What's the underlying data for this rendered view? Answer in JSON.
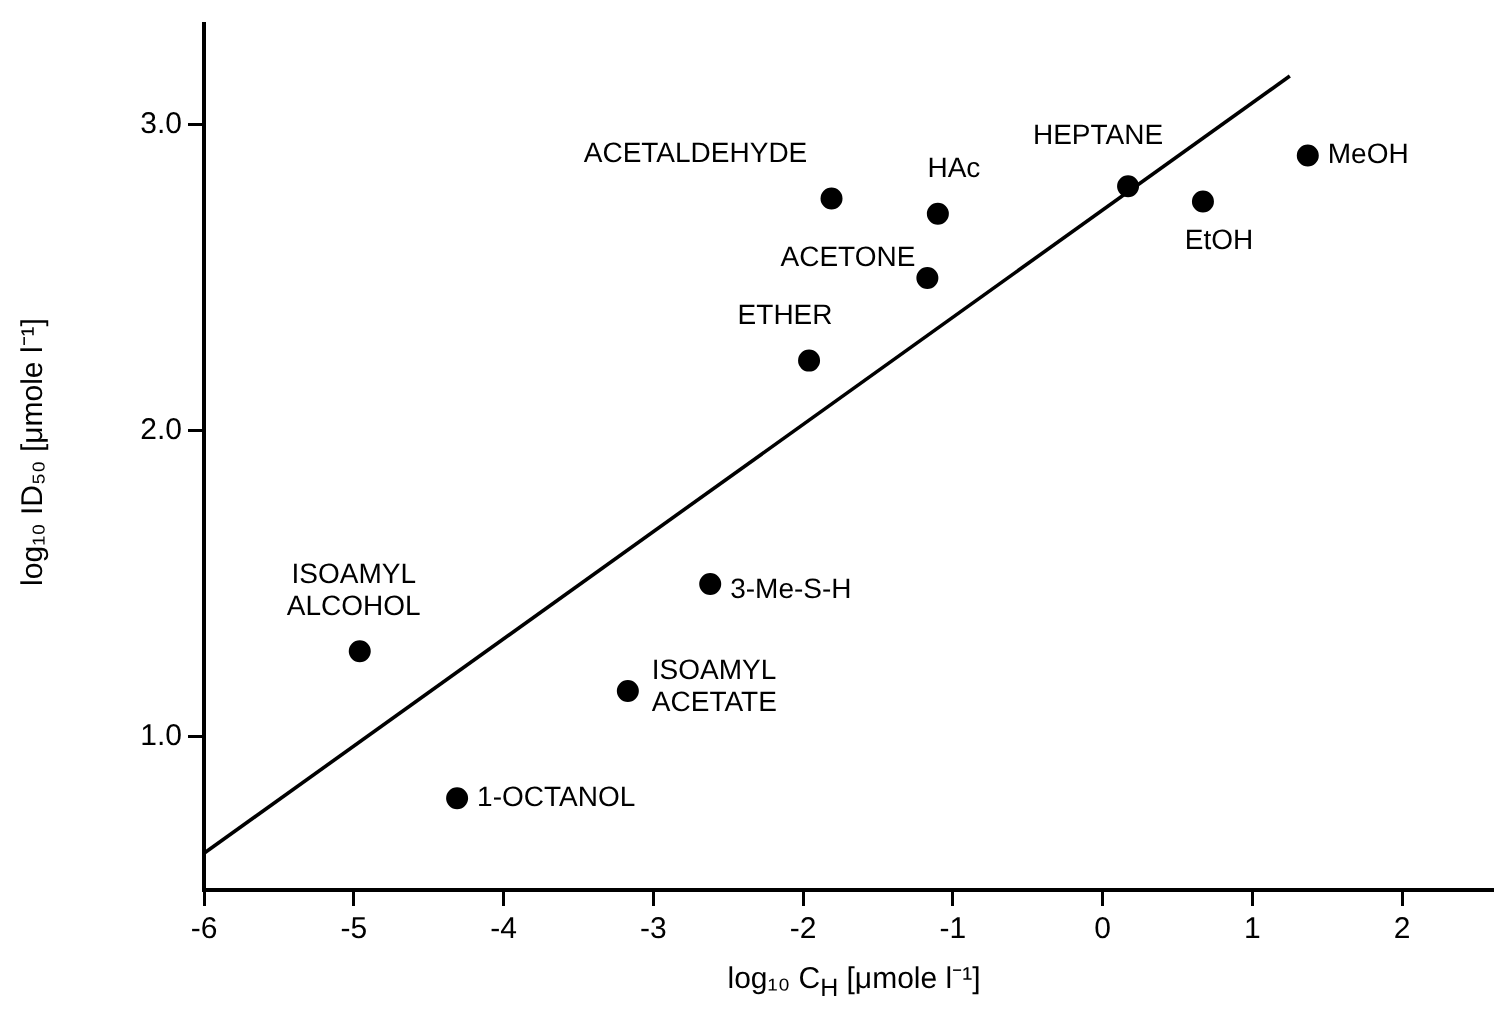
{
  "chart_data": {
    "type": "scatter",
    "xlabel": "log₁₀ C$_{H}$ [μmole l⁻¹]",
    "ylabel": "log₁₀ ID₅₀ [μmole l⁻¹]",
    "xlim": [
      -6,
      2.6
    ],
    "ylim": [
      0.5,
      3.33
    ],
    "xticks": [
      -6,
      -5,
      -4,
      -3,
      -2,
      -1,
      0,
      1,
      2
    ],
    "yticks": [
      {
        "value": 1,
        "label": "1.0"
      },
      {
        "value": 2,
        "label": "2.0"
      },
      {
        "value": 3,
        "label": "3.0"
      }
    ],
    "grid": false,
    "legend": false,
    "marker": "circle",
    "series": [
      {
        "color": "#000000",
        "x": [
          -1.81,
          -1.1,
          -1.17,
          -1.96,
          0.17,
          0.67,
          1.37,
          -4.96,
          -2.62,
          -3.17,
          -4.31
        ],
        "values": [
          2.76,
          2.71,
          2.5,
          2.23,
          2.8,
          2.75,
          2.9,
          1.28,
          1.5,
          1.15,
          0.8
        ]
      },
      {
        "type": "line",
        "marker": "none",
        "color": "#000000",
        "x": [
          -6,
          1.25
        ],
        "values": [
          0.62,
          3.16
        ]
      }
    ],
    "annotations": [
      {
        "text": "ACETALDEHYDE",
        "x": -1.81,
        "y": 2.76
      },
      {
        "text": "HAc",
        "x": -1.1,
        "y": 2.71
      },
      {
        "text": "ACETONE",
        "x": -1.17,
        "y": 2.5
      },
      {
        "text": "ETHER",
        "x": -1.96,
        "y": 2.23
      },
      {
        "text": "HEPTANE",
        "x": 0.17,
        "y": 2.8
      },
      {
        "text": "EtOH",
        "x": 0.67,
        "y": 2.75
      },
      {
        "text": "MeOH",
        "x": 1.37,
        "y": 2.9
      },
      {
        "text": "ISOAMYL\nALCOHOL",
        "x": -4.96,
        "y": 1.28
      },
      {
        "text": "3-Me-S-H",
        "x": -2.62,
        "y": 1.5
      },
      {
        "text": "ISOAMYL\nACETATE",
        "x": -3.17,
        "y": 1.15
      },
      {
        "text": "1-OCTANOL",
        "x": -4.31,
        "y": 0.8
      }
    ]
  }
}
